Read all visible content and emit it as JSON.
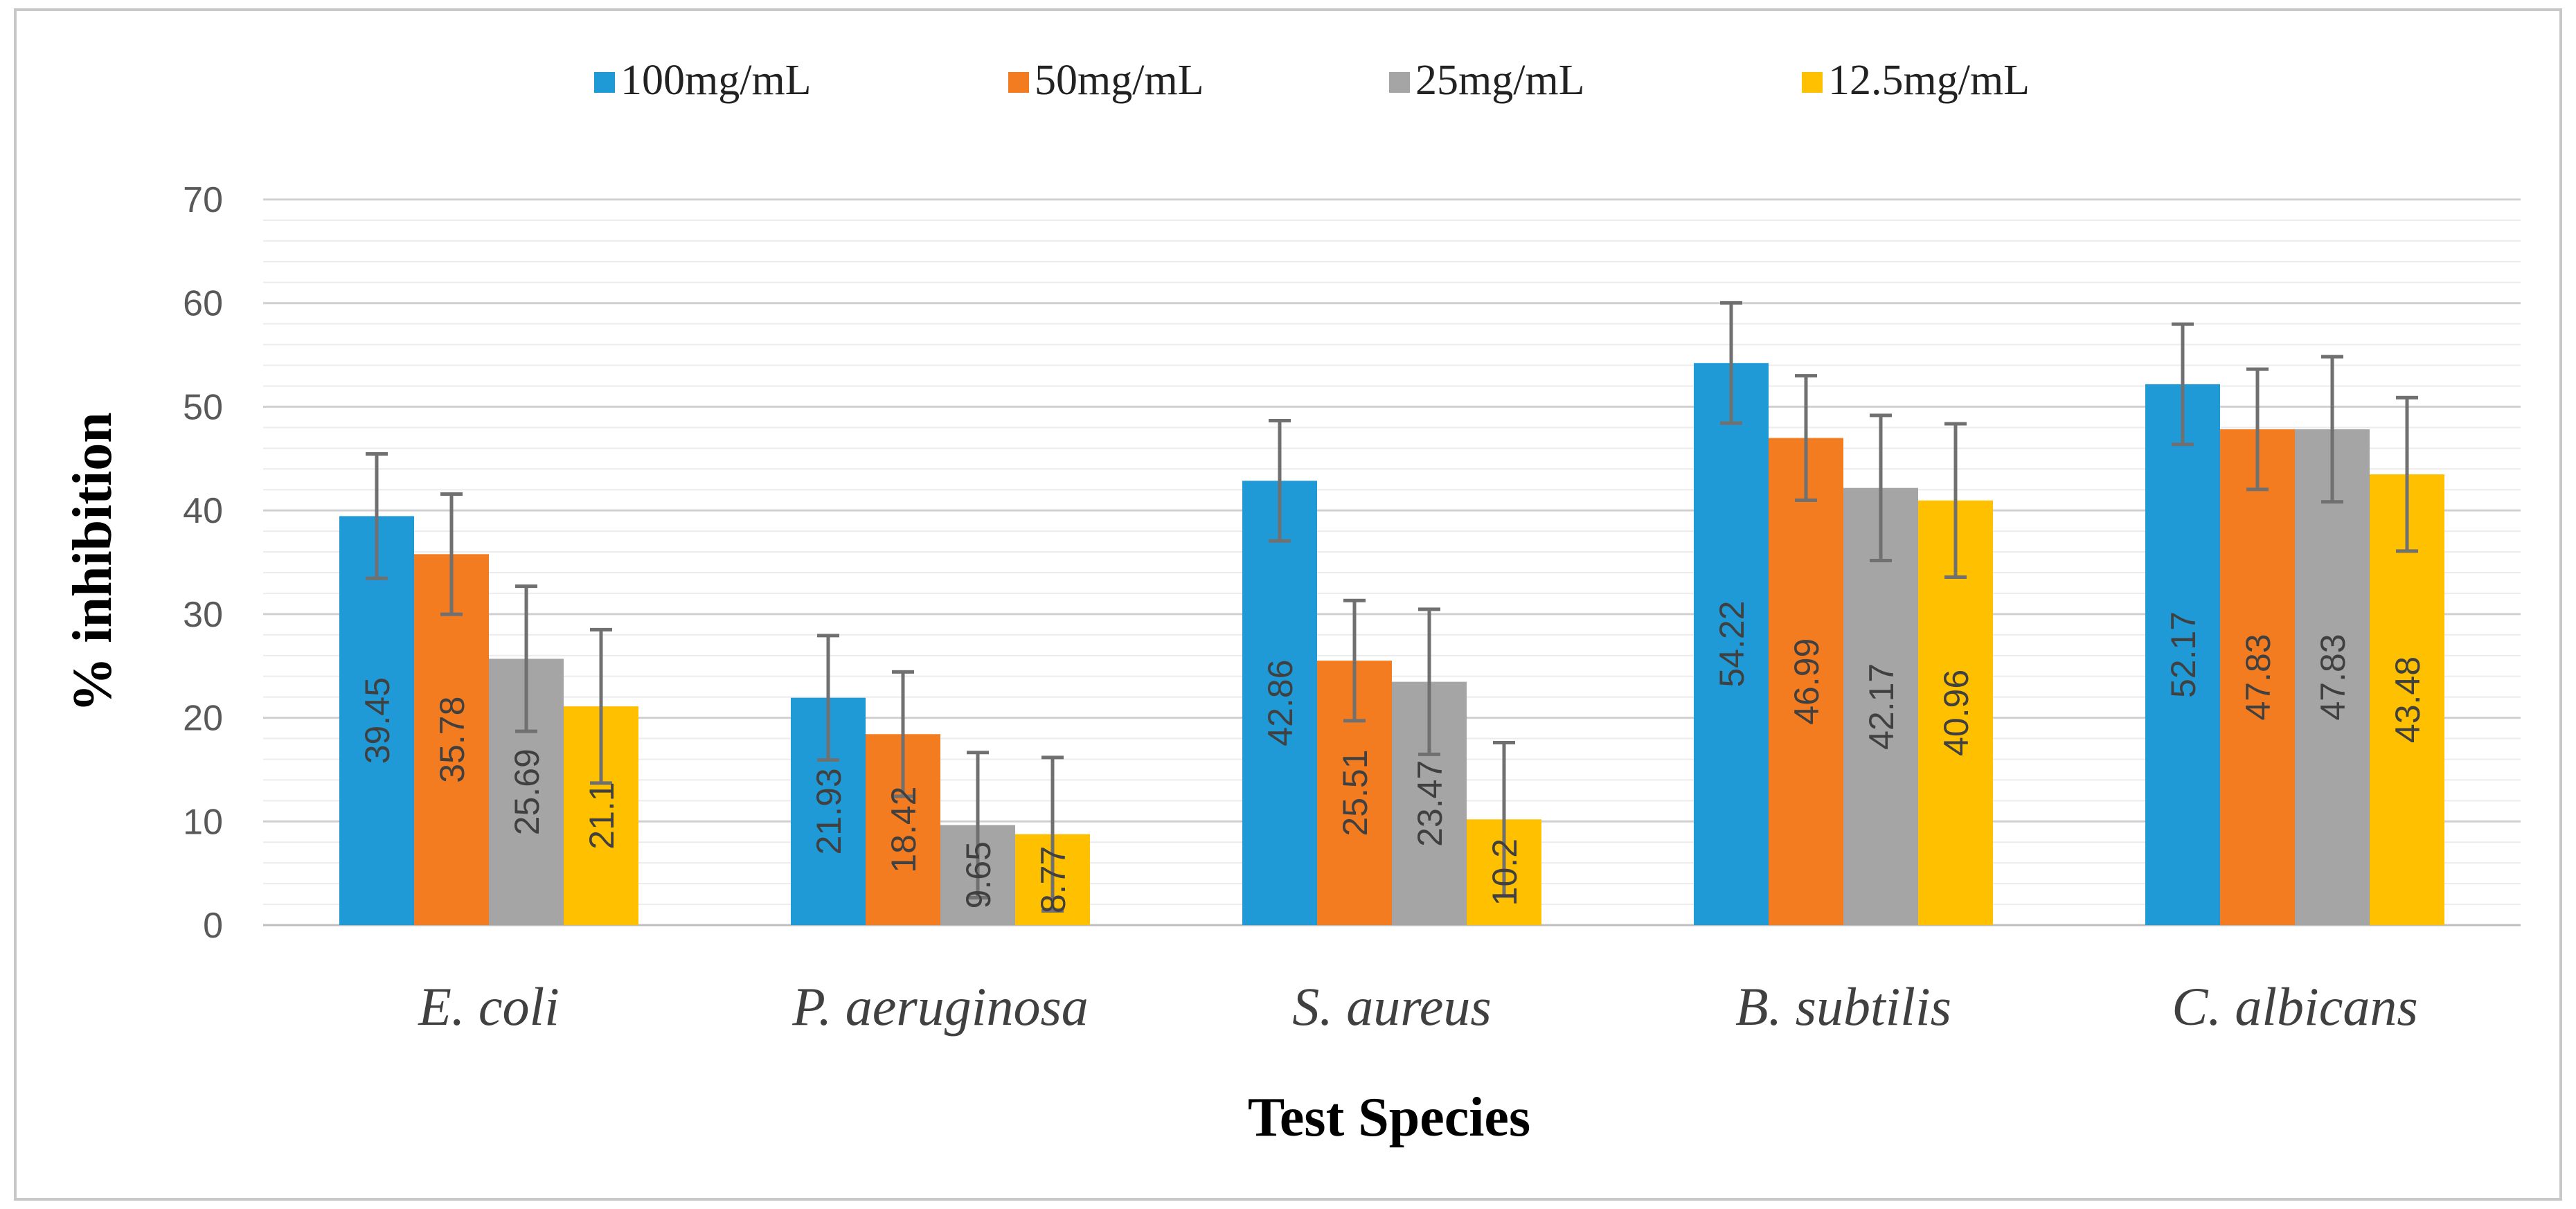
{
  "chart_data": {
    "type": "bar",
    "title": "",
    "xlabel": "Test Species",
    "ylabel": "% inhibition",
    "ylim": [
      0,
      70
    ],
    "yticks": [
      0,
      10,
      20,
      30,
      40,
      50,
      60,
      70
    ],
    "grid": true,
    "legend_position": "top-center",
    "categories": [
      "E. coli",
      "P. aeruginosa",
      "S. aureus",
      "B. subtilis",
      "C. albicans"
    ],
    "series": [
      {
        "name": "100mg/mL",
        "color": "#1f9ad6",
        "values": [
          39.45,
          21.93,
          42.86,
          54.22,
          52.17
        ],
        "labels": [
          "39.45",
          "21.93",
          "42.86",
          "54.22",
          "52.17"
        ],
        "error": [
          6.0,
          6.0,
          5.8,
          5.8,
          5.8
        ]
      },
      {
        "name": "50mg/mL",
        "color": "#f47c20",
        "values": [
          35.78,
          18.42,
          25.51,
          46.99,
          47.83
        ],
        "labels": [
          "35.78",
          "18.42",
          "25.51",
          "46.99",
          "47.83"
        ],
        "error": [
          5.8,
          6.0,
          5.8,
          6.0,
          5.8
        ]
      },
      {
        "name": "25mg/mL",
        "color": "#a5a5a5",
        "values": [
          25.69,
          9.65,
          23.47,
          42.17,
          47.83
        ],
        "labels": [
          "25.69",
          "9.65",
          "23.47",
          "42.17",
          "47.83"
        ],
        "error": [
          7.0,
          7.0,
          7.0,
          7.0,
          7.0
        ]
      },
      {
        "name": "12.5mg/mL",
        "color": "#ffc000",
        "values": [
          21.1,
          8.77,
          10.2,
          40.96,
          43.48
        ],
        "labels": [
          "21.1",
          "8.77",
          "10.2",
          "40.96",
          "43.48"
        ],
        "error": [
          7.4,
          7.4,
          7.4,
          7.4,
          7.4
        ]
      }
    ]
  }
}
